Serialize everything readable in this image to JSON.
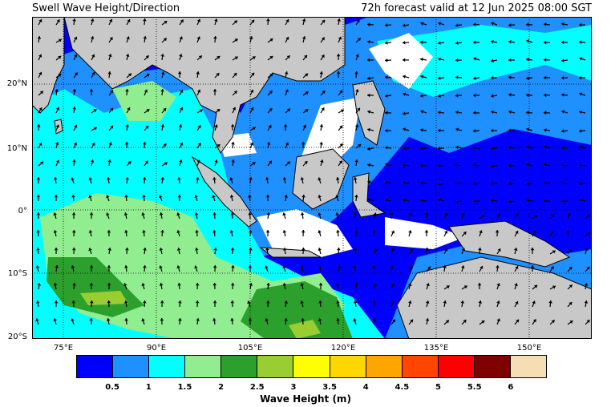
{
  "header": {
    "left_title": "Swell Wave Height/Direction",
    "right_title": "72h forecast valid at 12 Jun 2025 08:00 SGT"
  },
  "map": {
    "lat_labels": [
      "20°N",
      "10°N",
      "0°",
      "10°S",
      "20°S"
    ],
    "lon_labels": [
      "75°E",
      "90°E",
      "105°E",
      "120°E",
      "135°E",
      "150°E"
    ],
    "lat_range": [
      -20,
      30
    ],
    "lon_range": [
      68,
      157
    ],
    "land_color": "#c8c8c8",
    "grid_style": "dotted"
  },
  "legend": {
    "title": "Wave Height (m)",
    "ticks": [
      "0.5",
      "1",
      "1.5",
      "2",
      "2.5",
      "3",
      "3.5",
      "4",
      "4.5",
      "5",
      "5.5",
      "6"
    ],
    "colors": [
      "#0000ff",
      "#1e90ff",
      "#00ffff",
      "#90ee90",
      "#2ca02c",
      "#9acd32",
      "#ffff00",
      "#ffd700",
      "#ffa500",
      "#ff4500",
      "#ff0000",
      "#800000",
      "#f5deb3"
    ]
  }
}
